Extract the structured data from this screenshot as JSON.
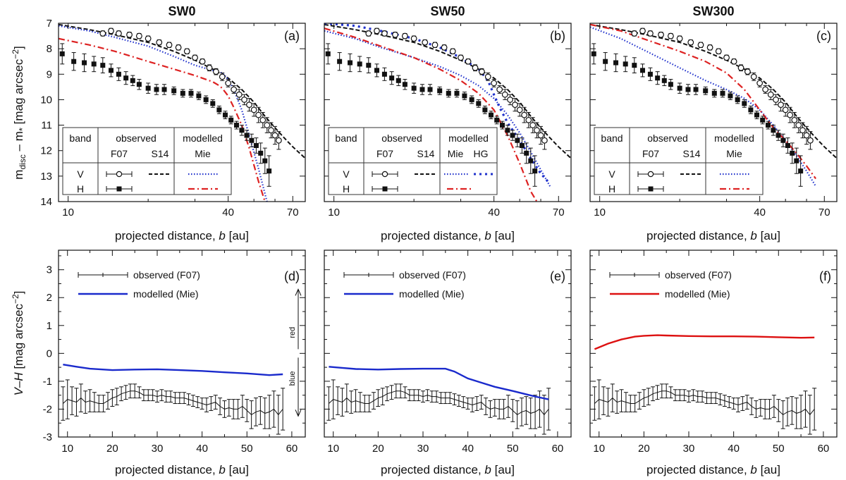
{
  "chart_data": {
    "type": "scatter",
    "columns": [
      "SW0",
      "SW50",
      "SW300"
    ],
    "top_row": {
      "xlabel_text": "projected distance,",
      "xlabel_var": "b",
      "xlabel_unit": "[au]",
      "ylabel_main": "m",
      "ylabel_sub1": "disc",
      "ylabel_mid": " – m",
      "ylabel_sub2": "*",
      "ylabel_unit": " [mag arcsec",
      "ylabel_exp": "−2",
      "ylabel_close": "]",
      "xscale": "log",
      "xlim": [
        9.2,
        78
      ],
      "ylim": [
        14,
        7
      ],
      "xticks": [
        "10",
        "40",
        "70"
      ],
      "xtick_values": [
        10,
        40,
        70
      ],
      "yticks": [
        "7",
        "8",
        "9",
        "10",
        "11",
        "12",
        "13",
        "14"
      ],
      "ytick_values": [
        7,
        8,
        9,
        10,
        11,
        12,
        13,
        14
      ],
      "observed_V_F07": {
        "x": [
          13.5,
          14.5,
          15.5,
          17,
          18.5,
          20,
          22,
          24,
          26,
          28,
          30,
          32,
          34,
          36,
          38,
          40,
          42,
          44,
          46,
          48,
          50,
          52,
          54,
          56,
          58,
          60,
          62
        ],
        "y": [
          7.4,
          7.3,
          7.4,
          7.45,
          7.5,
          7.6,
          7.75,
          7.85,
          7.95,
          8.1,
          8.35,
          8.5,
          8.75,
          8.9,
          9.1,
          9.35,
          9.6,
          9.8,
          10.0,
          10.2,
          10.4,
          10.6,
          10.8,
          11.0,
          11.2,
          11.4,
          11.6
        ],
        "err": [
          0.1,
          0.1,
          0.1,
          0.1,
          0.1,
          0.1,
          0.1,
          0.1,
          0.1,
          0.1,
          0.1,
          0.1,
          0.12,
          0.12,
          0.15,
          0.15,
          0.15,
          0.2,
          0.2,
          0.25,
          0.25,
          0.3,
          0.3,
          0.3,
          0.3,
          0.35,
          0.35
        ]
      },
      "observed_H_F07": {
        "x": [
          9.5,
          10.5,
          11.5,
          12.5,
          13.5,
          14.5,
          15.5,
          16.5,
          17.5,
          18.5,
          20,
          21.5,
          23,
          25,
          27,
          29,
          31,
          33,
          35,
          37,
          39,
          41,
          43,
          45,
          47,
          49,
          51,
          53,
          55,
          57
        ],
        "y": [
          8.2,
          8.5,
          8.55,
          8.6,
          8.65,
          8.85,
          9.0,
          9.15,
          9.25,
          9.4,
          9.55,
          9.6,
          9.6,
          9.65,
          9.75,
          9.75,
          9.85,
          10.0,
          10.15,
          10.4,
          10.6,
          10.8,
          11.0,
          11.2,
          11.4,
          11.6,
          11.8,
          12.1,
          12.4,
          12.8
        ],
        "err": [
          0.4,
          0.35,
          0.35,
          0.3,
          0.3,
          0.25,
          0.25,
          0.25,
          0.2,
          0.2,
          0.2,
          0.2,
          0.2,
          0.15,
          0.15,
          0.15,
          0.15,
          0.15,
          0.15,
          0.15,
          0.15,
          0.15,
          0.15,
          0.2,
          0.2,
          0.25,
          0.3,
          0.4,
          0.5,
          0.6
        ]
      },
      "S14_V": {
        "x": [
          9.2,
          12,
          15,
          20,
          25,
          30,
          35,
          40,
          45,
          50,
          55,
          60,
          65,
          70,
          78
        ],
        "y": [
          7.05,
          7.25,
          7.45,
          7.75,
          8.1,
          8.45,
          8.8,
          9.15,
          9.6,
          10.1,
          10.65,
          11.1,
          11.5,
          11.85,
          12.3
        ]
      },
      "panels": [
        {
          "label": "(a)",
          "curves": [
            {
              "name": "modelled Mie V",
              "color": "#2233cc",
              "dash": "1.5,2.5",
              "width": 2.2,
              "x": [
                9.2,
                12,
                15,
                20,
                25,
                30,
                35,
                38,
                40,
                42,
                45,
                48,
                52,
                56
              ],
              "y": [
                7.1,
                7.3,
                7.55,
                7.9,
                8.3,
                8.65,
                8.85,
                8.95,
                9.2,
                9.6,
                10.4,
                11.4,
                12.7,
                14.0
              ]
            },
            {
              "name": "modelled Mie H",
              "color": "#dd2222",
              "dash": "9,4,2,4",
              "width": 2.2,
              "x": [
                9.2,
                12,
                15,
                20,
                25,
                30,
                35,
                37,
                38,
                40,
                42,
                45,
                48,
                52,
                55
              ],
              "y": [
                7.6,
                7.85,
                8.1,
                8.5,
                8.8,
                9.05,
                9.3,
                9.45,
                9.55,
                9.85,
                10.3,
                11.0,
                11.9,
                13.2,
                14.0
              ]
            }
          ]
        },
        {
          "label": "(b)",
          "curves": [
            {
              "name": "modelled Mie V",
              "color": "#2233cc",
              "dash": "1.5,2.5",
              "width": 2.2,
              "x": [
                9.2,
                12,
                15,
                20,
                25,
                30,
                35,
                40,
                45,
                50,
                55,
                60,
                65
              ],
              "y": [
                7.3,
                7.6,
                7.95,
                8.35,
                8.7,
                9.05,
                9.45,
                9.95,
                10.6,
                11.3,
                12.05,
                12.75,
                13.4
              ]
            },
            {
              "name": "modelled HG V",
              "color": "#2233cc",
              "dash": "3,5",
              "width": 3.2,
              "x": [
                9.2,
                12,
                15,
                20,
                25,
                30,
                35,
                38,
                40,
                42,
                45,
                50,
                55,
                60,
                65
              ],
              "y": [
                7.0,
                7.1,
                7.3,
                7.6,
                7.95,
                8.35,
                8.8,
                9.25,
                9.8,
                10.3,
                10.9,
                11.6,
                12.3,
                12.9,
                13.3
              ]
            },
            {
              "name": "modelled Mie H",
              "color": "#dd2222",
              "dash": "9,4,2,4",
              "width": 2.2,
              "x": [
                9.2,
                12,
                15,
                20,
                25,
                30,
                35,
                40,
                45,
                50,
                55,
                58
              ],
              "y": [
                7.2,
                7.55,
                7.9,
                8.35,
                8.8,
                9.25,
                9.75,
                10.4,
                11.4,
                12.5,
                13.6,
                14.0
              ]
            }
          ]
        },
        {
          "label": "(c)",
          "curves": [
            {
              "name": "modelled Mie V",
              "color": "#2233cc",
              "dash": "1.5,2.5",
              "width": 2.2,
              "x": [
                9.2,
                12,
                15,
                20,
                25,
                30,
                35,
                40,
                45,
                50,
                55,
                60,
                65
              ],
              "y": [
                7.15,
                7.6,
                8.1,
                8.75,
                9.25,
                9.6,
                9.95,
                10.4,
                11.0,
                11.6,
                12.2,
                12.8,
                13.4
              ]
            },
            {
              "name": "modelled Mie H",
              "color": "#dd2222",
              "dash": "9,4,2,4",
              "width": 2.2,
              "x": [
                9.2,
                12,
                15,
                20,
                25,
                30,
                35,
                40,
                45,
                50,
                55,
                60,
                65
              ],
              "y": [
                7.05,
                7.3,
                7.65,
                8.1,
                8.5,
                8.95,
                9.6,
                10.4,
                11.1,
                11.6,
                12.1,
                12.6,
                13.1
              ]
            }
          ]
        }
      ],
      "legend": {
        "head_band": "band",
        "head_observed": "observed",
        "head_modelled": "modelled",
        "sub_F07": "F07",
        "sub_S14": "S14",
        "sub_Mie": "Mie",
        "sub_HG": "HG",
        "row_V": "V",
        "row_H": "H"
      }
    },
    "bottom_row": {
      "xlabel_text": "projected distance,",
      "xlabel_var": "b",
      "xlabel_unit": "[au]",
      "ylabel_var": "V–H",
      "ylabel_unit": " [mag arcsec",
      "ylabel_exp": "−2",
      "ylabel_close": "]",
      "xlim": [
        8,
        63
      ],
      "ylim": [
        -3,
        3.7
      ],
      "xticks": [
        "10",
        "20",
        "30",
        "40",
        "50",
        "60"
      ],
      "xtick_values": [
        10,
        20,
        30,
        40,
        50,
        60
      ],
      "yticks": [
        "-3",
        "-2",
        "-1",
        "0",
        "1",
        "2",
        "3"
      ],
      "ytick_values": [
        -3,
        -2,
        -1,
        0,
        1,
        2,
        3
      ],
      "observed_F07": {
        "x": [
          9,
          10,
          11,
          12,
          13,
          14,
          15,
          16,
          17,
          18,
          19,
          20,
          21,
          22,
          23,
          24,
          25,
          26,
          27,
          28,
          29,
          30,
          31,
          32,
          33,
          34,
          35,
          36,
          37,
          38,
          39,
          40,
          41,
          42,
          43,
          44,
          45,
          46,
          47,
          48,
          49,
          50,
          51,
          52,
          53,
          54,
          55,
          56,
          57,
          58
        ],
        "y": [
          -1.8,
          -1.65,
          -1.7,
          -1.75,
          -1.6,
          -1.75,
          -1.7,
          -1.75,
          -1.8,
          -1.8,
          -1.7,
          -1.6,
          -1.55,
          -1.45,
          -1.4,
          -1.35,
          -1.35,
          -1.4,
          -1.5,
          -1.5,
          -1.5,
          -1.55,
          -1.5,
          -1.55,
          -1.55,
          -1.6,
          -1.6,
          -1.6,
          -1.65,
          -1.7,
          -1.75,
          -1.8,
          -1.85,
          -1.8,
          -1.75,
          -1.9,
          -2.0,
          -1.95,
          -2.0,
          -2.0,
          -1.9,
          -2.05,
          -2.2,
          -2.1,
          -2.05,
          -2.15,
          -2.1,
          -2.0,
          -2.2,
          -2.0
        ],
        "err": [
          0.6,
          0.7,
          0.5,
          0.5,
          0.5,
          0.4,
          0.4,
          0.35,
          0.3,
          0.3,
          0.3,
          0.3,
          0.3,
          0.25,
          0.25,
          0.25,
          0.25,
          0.2,
          0.2,
          0.2,
          0.2,
          0.2,
          0.2,
          0.2,
          0.2,
          0.2,
          0.2,
          0.2,
          0.2,
          0.2,
          0.2,
          0.2,
          0.25,
          0.25,
          0.25,
          0.3,
          0.3,
          0.3,
          0.35,
          0.35,
          0.4,
          0.4,
          0.5,
          0.5,
          0.5,
          0.55,
          0.6,
          0.65,
          0.7,
          0.75
        ]
      },
      "legend_observed": "observed (F07)",
      "legend_modelled": "modelled (Mie)",
      "annotation_red": "red",
      "annotation_blue": "blue",
      "panels": [
        {
          "label": "(d)",
          "color": "#1a2acc",
          "x": [
            9,
            12,
            15,
            20,
            25,
            30,
            35,
            40,
            45,
            50,
            55,
            58
          ],
          "y": [
            -0.4,
            -0.48,
            -0.55,
            -0.6,
            -0.58,
            -0.57,
            -0.6,
            -0.63,
            -0.68,
            -0.72,
            -0.78,
            -0.75
          ]
        },
        {
          "label": "(e)",
          "color": "#1a2acc",
          "x": [
            9,
            12,
            15,
            20,
            25,
            30,
            35,
            37,
            40,
            43,
            46,
            50,
            55,
            58
          ],
          "y": [
            -0.48,
            -0.52,
            -0.56,
            -0.58,
            -0.56,
            -0.55,
            -0.55,
            -0.65,
            -0.9,
            -1.05,
            -1.2,
            -1.35,
            -1.55,
            -1.65
          ]
        },
        {
          "label": "(f)",
          "color": "#dd1111",
          "x": [
            9,
            12,
            15,
            18,
            20,
            23,
            25,
            30,
            35,
            40,
            45,
            50,
            55,
            58
          ],
          "y": [
            0.15,
            0.35,
            0.5,
            0.6,
            0.63,
            0.65,
            0.64,
            0.62,
            0.61,
            0.61,
            0.6,
            0.58,
            0.56,
            0.57
          ]
        }
      ]
    }
  }
}
